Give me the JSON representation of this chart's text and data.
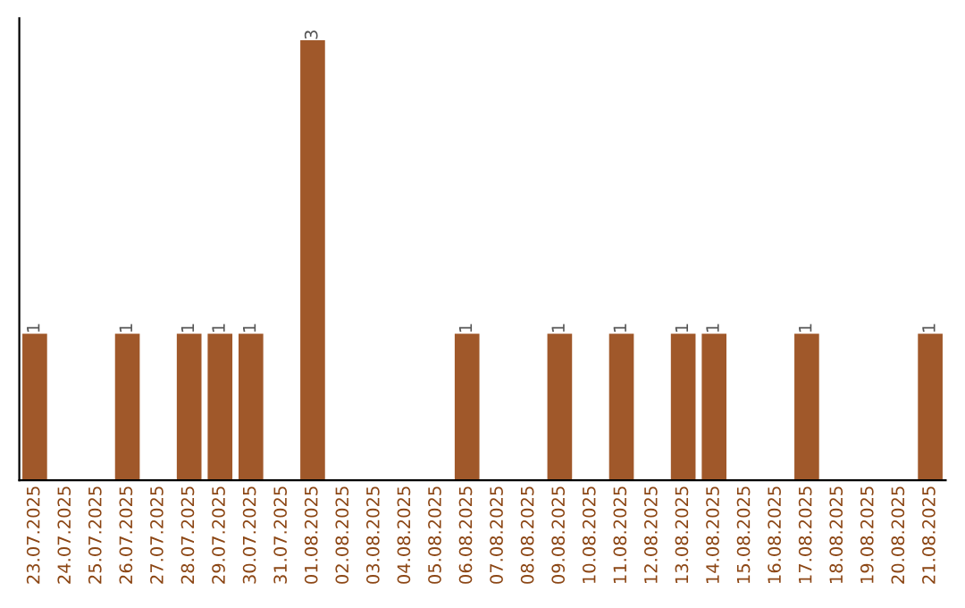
{
  "chart_data": {
    "type": "bar",
    "categories": [
      "23.07.2025",
      "24.07.2025",
      "25.07.2025",
      "26.07.2025",
      "27.07.2025",
      "28.07.2025",
      "29.07.2025",
      "30.07.2025",
      "31.07.2025",
      "01.08.2025",
      "02.08.2025",
      "03.08.2025",
      "04.08.2025",
      "05.08.2025",
      "06.08.2025",
      "07.08.2025",
      "08.08.2025",
      "09.08.2025",
      "10.08.2025",
      "11.08.2025",
      "12.08.2025",
      "13.08.2025",
      "14.08.2025",
      "15.08.2025",
      "16.08.2025",
      "17.08.2025",
      "18.08.2025",
      "19.08.2025",
      "20.08.2025",
      "21.08.2025"
    ],
    "values": [
      1,
      0,
      0,
      1,
      0,
      1,
      1,
      1,
      0,
      3,
      0,
      0,
      0,
      0,
      1,
      0,
      0,
      1,
      0,
      1,
      0,
      1,
      1,
      0,
      0,
      1,
      0,
      0,
      0,
      1
    ],
    "value_labels": [
      "1",
      null,
      null,
      "1",
      null,
      "1",
      "1",
      "1",
      null,
      "3",
      null,
      null,
      null,
      null,
      "1",
      null,
      null,
      "1",
      null,
      "1",
      null,
      "1",
      "1",
      null,
      null,
      "1",
      null,
      null,
      null,
      "1"
    ],
    "color": "#a0582a",
    "tick_labels": "x",
    "grid": false,
    "legend": false
  }
}
